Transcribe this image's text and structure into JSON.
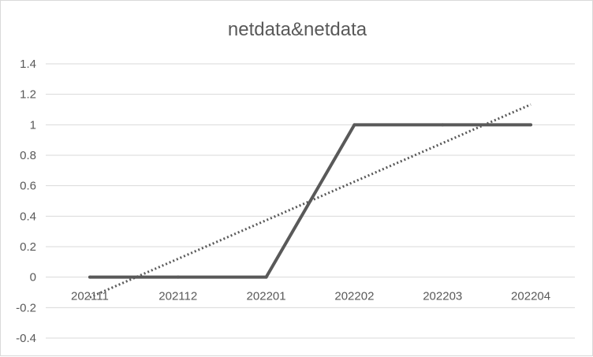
{
  "chart_data": {
    "type": "line",
    "title": "netdata&netdata",
    "categories": [
      "202111",
      "202112",
      "202201",
      "202202",
      "202203",
      "202204"
    ],
    "series": [
      {
        "values": [
          0,
          0,
          0,
          1,
          1,
          1
        ]
      }
    ],
    "trendline": {
      "type": "linear",
      "style": "dotted",
      "start": -0.133,
      "end": 1.133
    },
    "y_ticks": [
      -0.4,
      -0.2,
      0,
      0.2,
      0.4,
      0.6,
      0.8,
      1,
      1.2,
      1.4
    ],
    "ylim": [
      -0.4,
      1.4
    ],
    "grid": true,
    "legend": "none",
    "colors": {
      "series": "#595959",
      "trendline": "#595959",
      "grid": "#d9d9d9",
      "text": "#595959"
    }
  }
}
